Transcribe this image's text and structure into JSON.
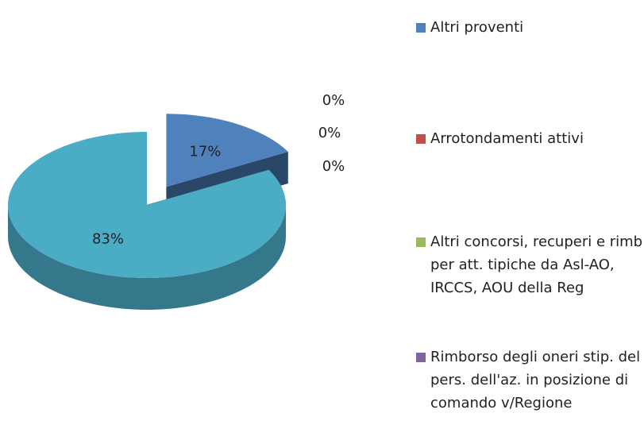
{
  "chart_data": {
    "type": "pie3d",
    "categories": [
      "Altri proventi",
      "Arrotondamenti attivi",
      "Altri concorsi, recuperi e rimb per att. tipiche da Asl-AO, IRCCS, AOU della Reg",
      "Rimborso degli oneri stip. del pers. dell'az. in posizione di comando v/Regione",
      null
    ],
    "values": [
      17,
      0,
      0,
      0,
      83
    ],
    "value_labels": [
      "17%",
      "0%",
      "0%",
      "0%",
      "83%"
    ],
    "colors": [
      "#4f81bd",
      "#c0504d",
      "#9bbb59",
      "#8064a2",
      "#4bacc6"
    ]
  }
}
